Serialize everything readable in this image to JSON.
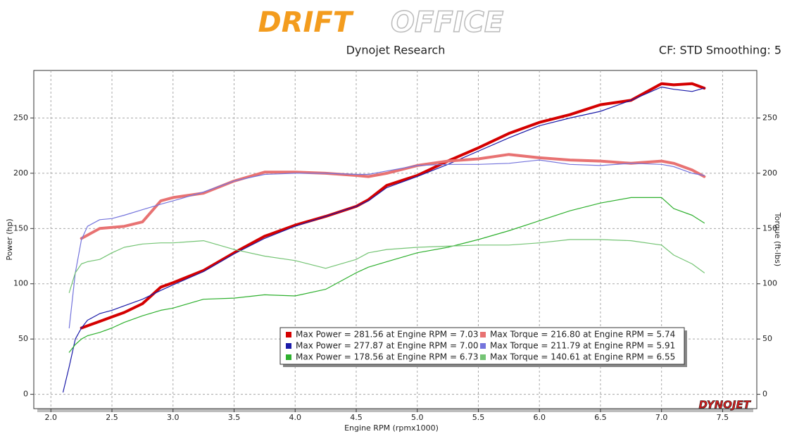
{
  "header": {
    "logo_left": "DRIFT",
    "logo_right": "OFFICE",
    "title": "Dynojet Research",
    "settings": "CF: STD Smoothing: 5"
  },
  "chart_data": {
    "type": "line",
    "x_label": "Engine RPM (rpmx1000)",
    "y_label": "Power (hp)",
    "y2_label": "Torque (ft-lbs)",
    "watermark": "DYNOJET",
    "grid": true,
    "xlim": [
      1.86,
      7.78
    ],
    "ylim": [
      -13,
      293
    ],
    "y2lim": [
      -13,
      293
    ],
    "xticks": [
      {
        "value": 2,
        "label": "2.0"
      },
      2.5,
      {
        "value": 3,
        "label": "3.0"
      },
      3.5,
      {
        "value": 4,
        "label": "4.0"
      },
      4.5,
      {
        "value": 5,
        "label": "5.0"
      },
      5.5,
      {
        "value": 6,
        "label": "6.0"
      },
      6.5,
      {
        "value": 7,
        "label": "7.0"
      },
      7.5
    ],
    "yticks": [
      0,
      50,
      100,
      150,
      200,
      250
    ],
    "y2ticks": [
      0,
      50,
      100,
      150,
      200,
      250
    ],
    "x": [
      2.1,
      2.15,
      2.2,
      2.25,
      2.3,
      2.4,
      2.5,
      2.6,
      2.75,
      2.9,
      3.0,
      3.25,
      3.5,
      3.75,
      4.0,
      4.25,
      4.5,
      4.6,
      4.75,
      5.0,
      5.25,
      5.5,
      5.75,
      6.0,
      6.25,
      6.5,
      6.75,
      7.0,
      7.1,
      7.25,
      7.35
    ],
    "series": [
      {
        "name": "Max Power = 281.56 at Engine RPM = 7.03",
        "color": "#d40000",
        "width": 4,
        "values": [
          null,
          null,
          null,
          60,
          62,
          66,
          70,
          74,
          82,
          97,
          101,
          112,
          128,
          143,
          153,
          161,
          170,
          176,
          189,
          198,
          211,
          223,
          236,
          246,
          253,
          262,
          266,
          281,
          280,
          281,
          277
        ]
      },
      {
        "name": "Max Power = 277.87 at Engine RPM = 7.00",
        "color": "#1a1aa8",
        "width": 1.2,
        "values": [
          2,
          25,
          50,
          60,
          67,
          73,
          76,
          80,
          86,
          94,
          99,
          111,
          127,
          141,
          152,
          161,
          170,
          175,
          187,
          197,
          208,
          220,
          232,
          243,
          250,
          256,
          266,
          278,
          276,
          274,
          277
        ]
      },
      {
        "name": "Max Power = 178.56 at Engine RPM = 6.73",
        "color": "#2eb02e",
        "width": 1.2,
        "values": [
          null,
          38,
          45,
          50,
          53,
          56,
          60,
          65,
          71,
          76,
          78,
          86,
          87,
          90,
          89,
          95,
          110,
          115,
          120,
          128,
          133,
          140,
          148,
          157,
          166,
          173,
          178,
          178,
          168,
          162,
          155
        ]
      },
      {
        "name": "Max Torque = 216.80 at Engine RPM = 5.74",
        "color": "#e87272",
        "width": 4,
        "axis": "y2",
        "values": [
          null,
          null,
          null,
          141,
          144,
          150,
          151,
          152,
          156,
          175,
          178,
          182,
          193,
          201,
          201,
          200,
          198,
          197,
          200,
          207,
          211,
          213,
          217,
          214,
          212,
          211,
          209,
          211,
          209,
          203,
          197
        ]
      },
      {
        "name": "Max Torque = 211.79 at Engine RPM = 5.91",
        "color": "#7474dc",
        "width": 1.2,
        "axis": "y2",
        "values": [
          null,
          60,
          110,
          140,
          152,
          158,
          159,
          162,
          167,
          172,
          175,
          183,
          193,
          199,
          200,
          200,
          199,
          199,
          202,
          207,
          208,
          208,
          209,
          212,
          208,
          207,
          209,
          208,
          206,
          200,
          198
        ]
      },
      {
        "name": "Max Torque = 140.61 at Engine RPM = 6.55",
        "color": "#74c474",
        "width": 1.2,
        "axis": "y2",
        "values": [
          null,
          92,
          110,
          118,
          120,
          122,
          128,
          133,
          136,
          137,
          137,
          139,
          131,
          125,
          121,
          114,
          122,
          128,
          131,
          133,
          134,
          135,
          135,
          137,
          140,
          140,
          139,
          135,
          126,
          118,
          110
        ]
      }
    ]
  }
}
